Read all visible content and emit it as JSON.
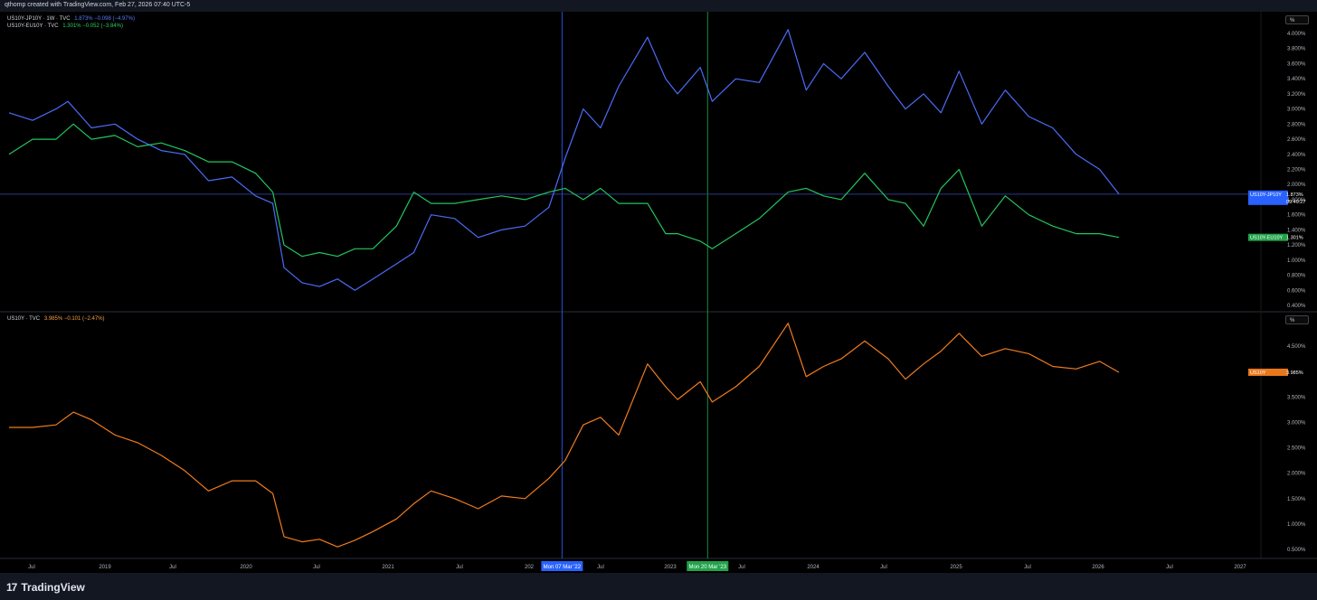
{
  "header": {
    "caption": "qthomp created with TradingView.com, Feb 27, 2026 07:40 UTC-5"
  },
  "brand": {
    "name": "TradingView"
  },
  "colors": {
    "blue": "#4a6cf7",
    "green": "#22c55e",
    "orange": "#f07c1e",
    "bg": "#000000"
  },
  "panes": {
    "top": {
      "scale_button": "%",
      "legend": [
        {
          "symbol": "US10Y-JP10Y · 1W · TVC",
          "values": "1.873%  −0.098 (−4.97%)",
          "color": "#5b7cfa"
        },
        {
          "symbol": "US10Y-EU10Y · TVC",
          "values": "1.301%  −0.052 (−3.84%)",
          "color": "#2bd160"
        }
      ],
      "ticks": [
        "4.000%",
        "3.800%",
        "3.600%",
        "3.400%",
        "3.200%",
        "3.000%",
        "2.800%",
        "2.600%",
        "2.400%",
        "2.200%",
        "2.000%",
        "1.800%",
        "1.600%",
        "1.400%",
        "1.200%",
        "1.000%",
        "0.800%",
        "0.600%",
        "0.400%"
      ],
      "price_tags": [
        {
          "label": "US10Y-JP10Y",
          "value": "1.873%",
          "extra": "09:49:27"
        },
        {
          "label": "US10Y-EU10Y",
          "value": "1.301%"
        }
      ]
    },
    "bottom": {
      "scale_button": "%",
      "legend": [
        {
          "symbol": "US10Y · TVC",
          "values": "3.985%  −0.101 (−2.47%)",
          "color": "#f59e42"
        }
      ],
      "ticks": [
        "4.500%",
        "3.500%",
        "3.000%",
        "2.500%",
        "2.000%",
        "1.500%",
        "1.000%",
        "0.500%"
      ],
      "price_tags": [
        {
          "label": "US10Y",
          "value": "3.985%"
        }
      ]
    }
  },
  "time_axis": {
    "labels": [
      "Jul",
      "2019",
      "Jul",
      "2020",
      "Jul",
      "2021",
      "Jul",
      "202",
      "Jul",
      "2023",
      "Jul",
      "2024",
      "Jul",
      "2025",
      "Jul",
      "2026",
      "Jul",
      "2027"
    ],
    "crosshairs": [
      {
        "label": "Mon 07 Mar '22",
        "color": "#2962ff"
      },
      {
        "label": "Mon 20 Mar '23",
        "color": "#22a34a"
      }
    ]
  },
  "chart_data": [
    {
      "type": "line",
      "x_unit": "date",
      "ylim": [
        0.3,
        4.15
      ],
      "series": [
        {
          "name": "US10Y-JP10Y",
          "color": "#4a6cf7",
          "x": [
            "2018-04-01",
            "2018-06-01",
            "2018-08-01",
            "2018-09-01",
            "2018-11-01",
            "2019-01-01",
            "2019-03-01",
            "2019-05-01",
            "2019-07-01",
            "2019-09-01",
            "2019-11-01",
            "2020-01-01",
            "2020-02-15",
            "2020-03-15",
            "2020-05-01",
            "2020-06-15",
            "2020-08-01",
            "2020-09-15",
            "2020-11-01",
            "2021-01-01",
            "2021-02-15",
            "2021-04-01",
            "2021-06-01",
            "2021-08-01",
            "2021-10-01",
            "2021-12-01",
            "2022-02-01",
            "2022-03-15",
            "2022-05-01",
            "2022-06-15",
            "2022-08-01",
            "2022-10-15",
            "2022-12-01",
            "2023-01-01",
            "2023-03-01",
            "2023-04-01",
            "2023-06-01",
            "2023-08-01",
            "2023-10-15",
            "2023-12-01",
            "2024-01-15",
            "2024-03-01",
            "2024-05-01",
            "2024-07-01",
            "2024-08-15",
            "2024-10-01",
            "2024-11-15",
            "2025-01-01",
            "2025-03-01",
            "2025-05-01",
            "2025-07-01",
            "2025-09-01",
            "2025-11-01",
            "2026-01-01",
            "2026-02-20"
          ],
          "values": [
            2.95,
            2.85,
            3.0,
            3.1,
            2.75,
            2.8,
            2.6,
            2.45,
            2.4,
            2.05,
            2.1,
            1.85,
            1.75,
            0.9,
            0.7,
            0.65,
            0.75,
            0.6,
            0.75,
            0.95,
            1.1,
            1.6,
            1.55,
            1.3,
            1.4,
            1.45,
            1.7,
            2.35,
            3.0,
            2.75,
            3.3,
            3.95,
            3.4,
            3.2,
            3.55,
            3.1,
            3.4,
            3.35,
            4.05,
            3.25,
            3.6,
            3.4,
            3.75,
            3.3,
            3.0,
            3.2,
            2.95,
            3.5,
            2.8,
            3.25,
            2.9,
            2.75,
            2.4,
            2.2,
            1.873
          ]
        },
        {
          "name": "US10Y-EU10Y",
          "color": "#22c55e",
          "x": [
            "2018-04-01",
            "2018-06-01",
            "2018-08-01",
            "2018-09-15",
            "2018-11-01",
            "2019-01-01",
            "2019-03-01",
            "2019-05-01",
            "2019-07-01",
            "2019-09-01",
            "2019-11-01",
            "2020-01-01",
            "2020-02-15",
            "2020-03-15",
            "2020-05-01",
            "2020-06-15",
            "2020-08-01",
            "2020-09-15",
            "2020-11-01",
            "2021-01-01",
            "2021-02-15",
            "2021-04-01",
            "2021-06-01",
            "2021-08-01",
            "2021-10-01",
            "2021-12-01",
            "2022-02-01",
            "2022-03-15",
            "2022-05-01",
            "2022-06-15",
            "2022-08-01",
            "2022-10-15",
            "2022-12-01",
            "2023-01-01",
            "2023-03-01",
            "2023-04-01",
            "2023-06-01",
            "2023-08-01",
            "2023-10-15",
            "2023-12-01",
            "2024-01-15",
            "2024-03-01",
            "2024-05-01",
            "2024-07-01",
            "2024-08-15",
            "2024-10-01",
            "2024-11-15",
            "2025-01-01",
            "2025-03-01",
            "2025-05-01",
            "2025-07-01",
            "2025-09-01",
            "2025-11-01",
            "2026-01-01",
            "2026-02-20"
          ],
          "values": [
            2.4,
            2.6,
            2.6,
            2.8,
            2.6,
            2.65,
            2.5,
            2.55,
            2.45,
            2.3,
            2.3,
            2.15,
            1.9,
            1.2,
            1.05,
            1.1,
            1.05,
            1.15,
            1.15,
            1.45,
            1.9,
            1.75,
            1.75,
            1.8,
            1.85,
            1.8,
            1.9,
            1.95,
            1.8,
            1.95,
            1.75,
            1.75,
            1.35,
            1.35,
            1.25,
            1.15,
            1.35,
            1.55,
            1.9,
            1.95,
            1.85,
            1.8,
            2.15,
            1.8,
            1.75,
            1.45,
            1.95,
            2.2,
            1.45,
            1.85,
            1.6,
            1.45,
            1.35,
            1.35,
            1.301
          ]
        }
      ]
    },
    {
      "type": "line",
      "x_unit": "date",
      "ylim": [
        0.3,
        5.0
      ],
      "series": [
        {
          "name": "US10Y",
          "color": "#f07c1e",
          "x": [
            "2018-04-01",
            "2018-06-01",
            "2018-08-01",
            "2018-09-15",
            "2018-11-01",
            "2019-01-01",
            "2019-03-01",
            "2019-05-01",
            "2019-07-01",
            "2019-09-01",
            "2019-11-01",
            "2020-01-01",
            "2020-02-15",
            "2020-03-15",
            "2020-05-01",
            "2020-06-15",
            "2020-08-01",
            "2020-09-15",
            "2020-11-01",
            "2021-01-01",
            "2021-02-15",
            "2021-04-01",
            "2021-06-01",
            "2021-08-01",
            "2021-10-01",
            "2021-12-01",
            "2022-02-01",
            "2022-03-15",
            "2022-05-01",
            "2022-06-15",
            "2022-08-01",
            "2022-10-15",
            "2022-12-01",
            "2023-01-01",
            "2023-03-01",
            "2023-04-01",
            "2023-06-01",
            "2023-08-01",
            "2023-10-15",
            "2023-12-01",
            "2024-01-15",
            "2024-03-01",
            "2024-05-01",
            "2024-07-01",
            "2024-08-15",
            "2024-10-01",
            "2024-11-15",
            "2025-01-01",
            "2025-03-01",
            "2025-05-01",
            "2025-07-01",
            "2025-09-01",
            "2025-11-01",
            "2026-01-01",
            "2026-02-20"
          ],
          "values": [
            2.9,
            2.9,
            2.95,
            3.2,
            3.05,
            2.75,
            2.6,
            2.35,
            2.05,
            1.65,
            1.85,
            1.85,
            1.6,
            0.75,
            0.65,
            0.7,
            0.55,
            0.68,
            0.85,
            1.1,
            1.4,
            1.65,
            1.5,
            1.3,
            1.55,
            1.5,
            1.9,
            2.25,
            2.95,
            3.1,
            2.75,
            4.15,
            3.7,
            3.45,
            3.8,
            3.4,
            3.7,
            4.1,
            4.95,
            3.9,
            4.1,
            4.25,
            4.6,
            4.25,
            3.85,
            4.15,
            4.4,
            4.75,
            4.3,
            4.45,
            4.35,
            4.1,
            4.05,
            4.2,
            3.985
          ]
        }
      ]
    }
  ]
}
